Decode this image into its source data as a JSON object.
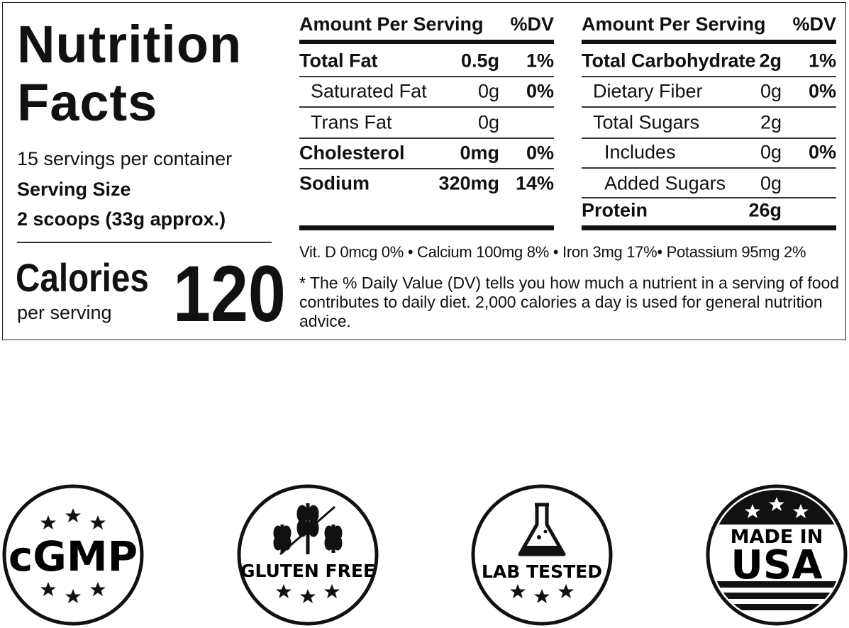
{
  "panel": {
    "title": "Nutrition Facts",
    "servings": "15 servings per container",
    "serving_size_label": "Serving Size",
    "serving_size": "2 scoops (33g approx.)",
    "calories_label": "Calories",
    "per_serving": "per serving",
    "calories": "120",
    "vitamins": "Vit. D 0mcg 0% • Calcium 100mg 8% • Iron 3mg 17%• Potassium 95mg 2%",
    "footnote": "* The % Daily Value (DV) tells you how much a nutrient in a serving of food contributes to daily diet. 2,000 calories a day is used for general nutrition advice."
  },
  "tables": [
    {
      "header": [
        "Amount Per Serving",
        "%DV"
      ],
      "rows": [
        {
          "name": "Total Fat",
          "amount": "0.5g",
          "dv": "1%"
        },
        {
          "name": "Saturated Fat",
          "amount": "0g",
          "dv": "0%"
        },
        {
          "name": "Trans Fat",
          "amount": "0g"
        },
        {
          "name": "Cholesterol",
          "amount": "0mg",
          "dv": "0%"
        },
        {
          "name": "Sodium",
          "amount": "320mg",
          "dv": "14%"
        }
      ]
    },
    {
      "header": [
        "Amount Per Serving",
        "%DV"
      ],
      "rows": [
        {
          "name": "Total Carbohydrate",
          "amount": "2g",
          "dv": "1%"
        },
        {
          "name": "Dietary Fiber",
          "amount": "0g",
          "dv": "0%"
        },
        {
          "name": "Total Sugars",
          "amount": "2g"
        },
        {
          "name": "Includes",
          "amount": "0g",
          "dv": "0%"
        },
        {
          "name": "Added Sugars",
          "amount": "0g"
        },
        {
          "name": "Protein",
          "amount": "26g"
        }
      ]
    }
  ],
  "badges": [
    "cGMP",
    "GLUTEN FREE",
    "LAB TESTED",
    "MADE IN",
    "USA"
  ]
}
